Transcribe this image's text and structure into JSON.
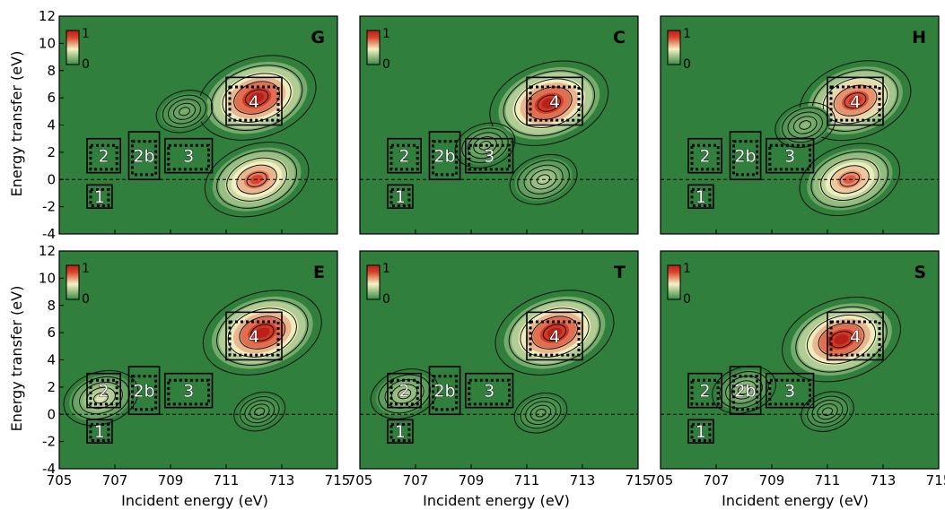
{
  "figure": {
    "ylabel": "Energy transfer (eV)",
    "xlabel": "Incident energy (eV)",
    "colorbar": {
      "max_label": "1",
      "min_label": "0"
    }
  },
  "colors": {
    "background": "#317f3c",
    "low": "#3a8a43",
    "mid": "#f5f2c4",
    "high": "#d9432a",
    "peak": "#b8201c",
    "contour": "#111111"
  },
  "chart_data": [
    {
      "type": "heatmap",
      "panel_label": "G",
      "xlim": [
        705,
        715
      ],
      "ylim": [
        -4,
        12
      ],
      "xticks": [
        "705",
        "707",
        "709",
        "711",
        "713",
        "715"
      ],
      "yticks": [
        "-4",
        "-2",
        "0",
        "2",
        "4",
        "6",
        "8",
        "10",
        "12"
      ],
      "color_scale": [
        0,
        1
      ],
      "peaks": [
        {
          "x": 712.1,
          "y": 6.0,
          "amplitude": 1.0
        },
        {
          "x": 712.1,
          "y": 0.0,
          "amplitude": 0.8
        },
        {
          "x": 709.5,
          "y": 5.0,
          "amplitude": 0.15
        }
      ],
      "regions": [
        {
          "label": "1",
          "x": [
            706.0,
            706.9
          ],
          "y": [
            -2.1,
            -0.4
          ]
        },
        {
          "label": "2",
          "x": [
            706.0,
            707.2
          ],
          "y": [
            0.5,
            3.0
          ]
        },
        {
          "label": "2b",
          "x": [
            707.5,
            708.6
          ],
          "y": [
            0.0,
            3.5
          ]
        },
        {
          "label": "3",
          "x": [
            708.8,
            710.5
          ],
          "y": [
            0.5,
            3.0
          ]
        },
        {
          "label": "4",
          "x": [
            711.0,
            713.0
          ],
          "y": [
            4.0,
            7.5
          ]
        }
      ]
    },
    {
      "type": "heatmap",
      "panel_label": "C",
      "xlim": [
        705,
        715
      ],
      "ylim": [
        -4,
        12
      ],
      "xticks": [
        "705",
        "707",
        "709",
        "711",
        "713",
        "715"
      ],
      "yticks": [],
      "color_scale": [
        0,
        1
      ],
      "peaks": [
        {
          "x": 711.8,
          "y": 5.6,
          "amplitude": 1.0
        },
        {
          "x": 711.6,
          "y": 0.0,
          "amplitude": 0.3
        },
        {
          "x": 709.5,
          "y": 2.5,
          "amplitude": 0.2
        }
      ],
      "regions": [
        {
          "label": "1",
          "x": [
            706.0,
            706.9
          ],
          "y": [
            -2.1,
            -0.4
          ]
        },
        {
          "label": "2",
          "x": [
            706.0,
            707.2
          ],
          "y": [
            0.5,
            3.0
          ]
        },
        {
          "label": "2b",
          "x": [
            707.5,
            708.6
          ],
          "y": [
            0.0,
            3.5
          ]
        },
        {
          "label": "3",
          "x": [
            708.8,
            710.5
          ],
          "y": [
            0.5,
            3.0
          ]
        },
        {
          "label": "4",
          "x": [
            711.0,
            713.0
          ],
          "y": [
            4.0,
            7.5
          ]
        }
      ]
    },
    {
      "type": "heatmap",
      "panel_label": "H",
      "xlim": [
        705,
        715
      ],
      "ylim": [
        -4,
        12
      ],
      "xticks": [
        "705",
        "707",
        "709",
        "711",
        "713",
        "715"
      ],
      "yticks": [],
      "color_scale": [
        0,
        1
      ],
      "peaks": [
        {
          "x": 712.0,
          "y": 5.8,
          "amplitude": 0.9
        },
        {
          "x": 711.8,
          "y": 0.0,
          "amplitude": 0.75
        },
        {
          "x": 710.2,
          "y": 4.0,
          "amplitude": 0.2
        }
      ],
      "regions": [
        {
          "label": "1",
          "x": [
            706.0,
            706.9
          ],
          "y": [
            -2.1,
            -0.4
          ]
        },
        {
          "label": "2",
          "x": [
            706.0,
            707.2
          ],
          "y": [
            0.5,
            3.0
          ]
        },
        {
          "label": "2b",
          "x": [
            707.5,
            708.6
          ],
          "y": [
            0.0,
            3.5
          ]
        },
        {
          "label": "3",
          "x": [
            708.8,
            710.5
          ],
          "y": [
            0.5,
            3.0
          ]
        },
        {
          "label": "4",
          "x": [
            711.0,
            713.0
          ],
          "y": [
            4.0,
            7.5
          ]
        }
      ]
    },
    {
      "type": "heatmap",
      "panel_label": "E",
      "xlim": [
        705,
        715
      ],
      "ylim": [
        -4,
        12
      ],
      "xticks": [
        "705",
        "707",
        "709",
        "711",
        "713",
        "715"
      ],
      "yticks": [
        "-4",
        "-2",
        "0",
        "2",
        "4",
        "6",
        "8",
        "10",
        "12"
      ],
      "color_scale": [
        0,
        1
      ],
      "peaks": [
        {
          "x": 712.3,
          "y": 6.0,
          "amplitude": 1.0
        },
        {
          "x": 706.5,
          "y": 1.2,
          "amplitude": 0.4
        },
        {
          "x": 712.2,
          "y": 0.2,
          "amplitude": 0.08
        }
      ],
      "regions": [
        {
          "label": "1",
          "x": [
            706.0,
            706.9
          ],
          "y": [
            -2.1,
            -0.4
          ]
        },
        {
          "label": "2",
          "x": [
            706.0,
            707.2
          ],
          "y": [
            0.5,
            3.0
          ]
        },
        {
          "label": "2b",
          "x": [
            707.5,
            708.6
          ],
          "y": [
            0.0,
            3.5
          ]
        },
        {
          "label": "3",
          "x": [
            708.8,
            710.5
          ],
          "y": [
            0.5,
            3.0
          ]
        },
        {
          "label": "4",
          "x": [
            711.0,
            713.0
          ],
          "y": [
            4.0,
            7.5
          ]
        }
      ]
    },
    {
      "type": "heatmap",
      "panel_label": "T",
      "xlim": [
        705,
        715
      ],
      "ylim": [
        -4,
        12
      ],
      "xticks": [
        "705",
        "707",
        "709",
        "711",
        "713",
        "715"
      ],
      "yticks": [],
      "color_scale": [
        0,
        1
      ],
      "peaks": [
        {
          "x": 712.0,
          "y": 6.0,
          "amplitude": 1.0
        },
        {
          "x": 706.6,
          "y": 1.5,
          "amplitude": 0.3
        },
        {
          "x": 711.5,
          "y": 0.1,
          "amplitude": 0.1
        }
      ],
      "regions": [
        {
          "label": "1",
          "x": [
            706.0,
            706.9
          ],
          "y": [
            -2.1,
            -0.4
          ]
        },
        {
          "label": "2",
          "x": [
            706.0,
            707.2
          ],
          "y": [
            0.5,
            3.0
          ]
        },
        {
          "label": "2b",
          "x": [
            707.5,
            708.6
          ],
          "y": [
            0.0,
            3.5
          ]
        },
        {
          "label": "3",
          "x": [
            708.8,
            710.5
          ],
          "y": [
            0.5,
            3.0
          ]
        },
        {
          "label": "4",
          "x": [
            711.0,
            713.0
          ],
          "y": [
            4.0,
            7.5
          ]
        }
      ]
    },
    {
      "type": "heatmap",
      "panel_label": "S",
      "xlim": [
        705,
        715
      ],
      "ylim": [
        -4,
        12
      ],
      "xticks": [
        "705",
        "707",
        "709",
        "711",
        "713",
        "715"
      ],
      "yticks": [],
      "color_scale": [
        0,
        1
      ],
      "peaks": [
        {
          "x": 711.5,
          "y": 5.5,
          "amplitude": 1.0
        },
        {
          "x": 708.0,
          "y": 1.8,
          "amplitude": 0.25
        },
        {
          "x": 711.0,
          "y": 0.2,
          "amplitude": 0.1
        }
      ],
      "regions": [
        {
          "label": "1",
          "x": [
            706.0,
            706.9
          ],
          "y": [
            -2.1,
            -0.4
          ]
        },
        {
          "label": "2",
          "x": [
            706.0,
            707.2
          ],
          "y": [
            0.5,
            3.0
          ]
        },
        {
          "label": "2b",
          "x": [
            707.5,
            708.6
          ],
          "y": [
            0.0,
            3.5
          ]
        },
        {
          "label": "3",
          "x": [
            708.8,
            710.5
          ],
          "y": [
            0.5,
            3.0
          ]
        },
        {
          "label": "4",
          "x": [
            711.0,
            713.0
          ],
          "y": [
            4.0,
            7.5
          ]
        }
      ]
    }
  ]
}
